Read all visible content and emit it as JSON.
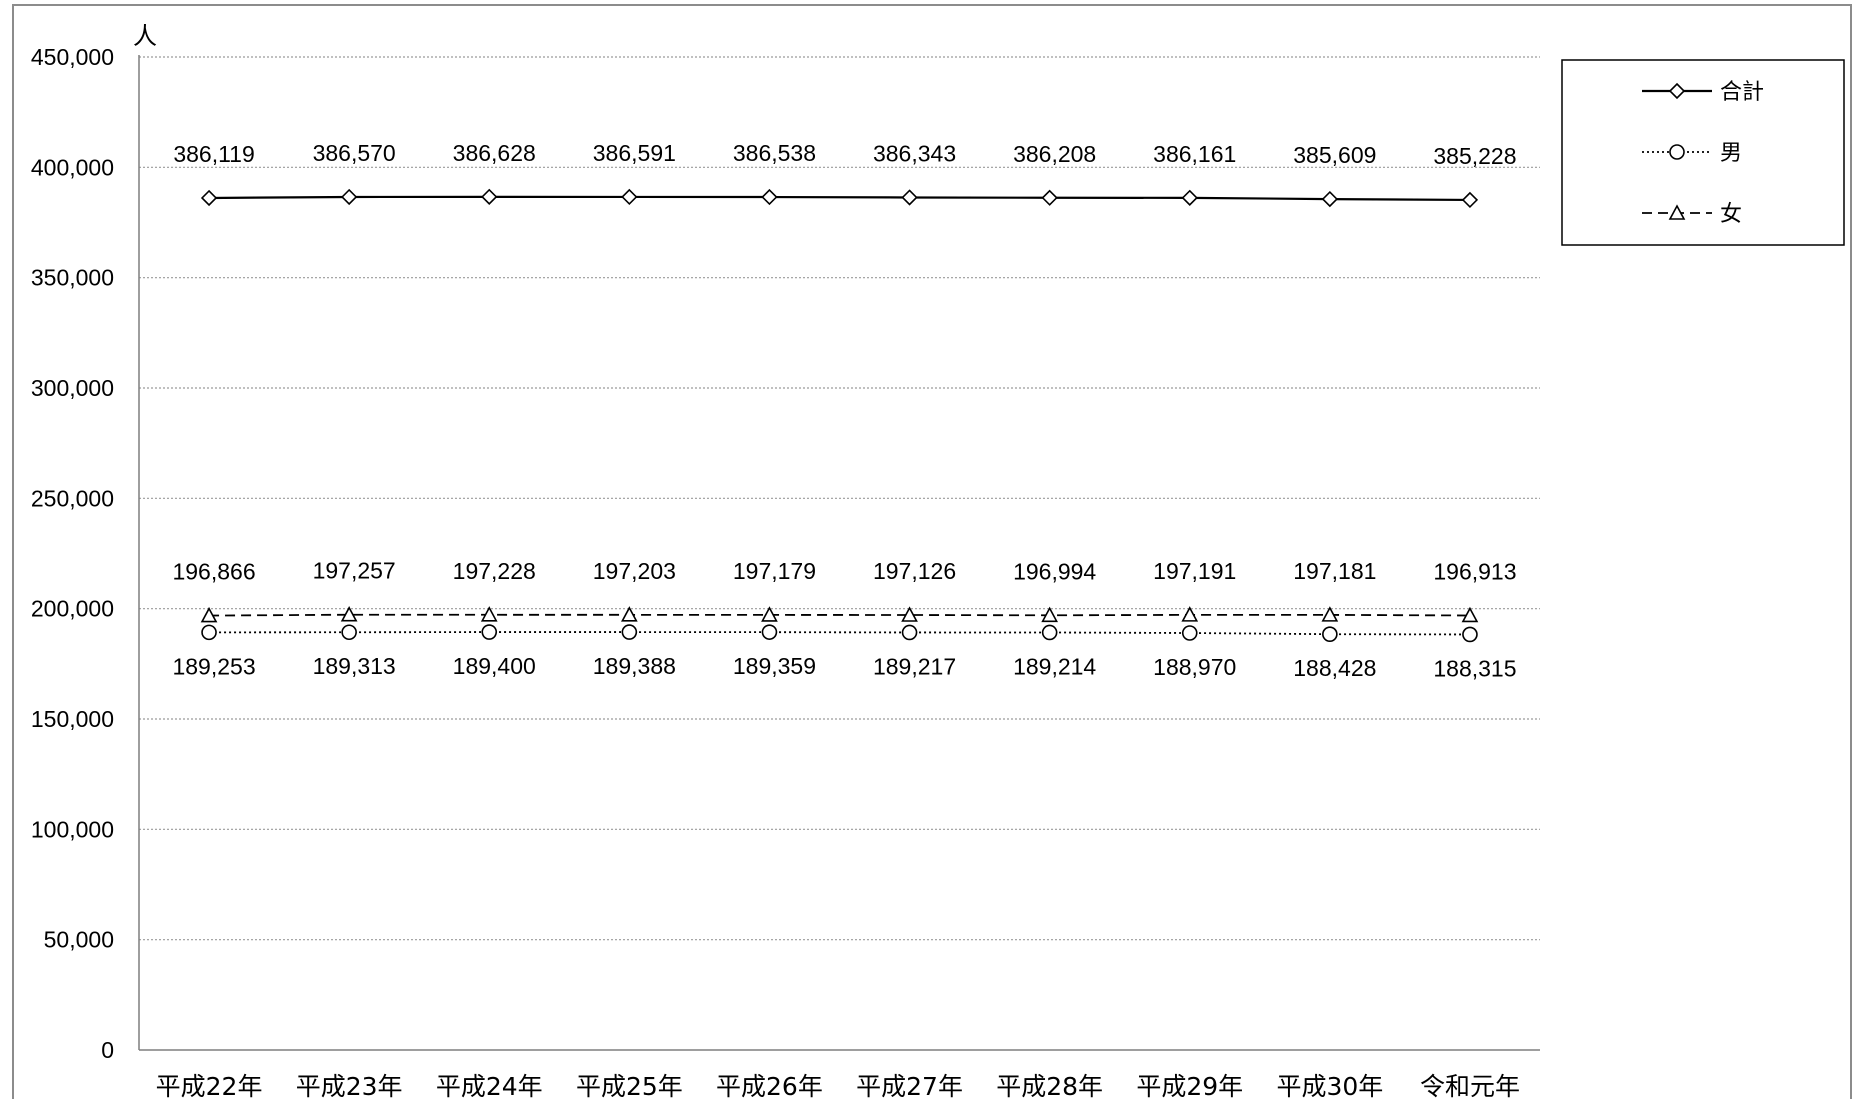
{
  "chart_data": {
    "type": "line",
    "unit_label": "人",
    "categories": [
      "平成22年",
      "平成23年",
      "平成24年",
      "平成25年",
      "平成26年",
      "平成27年",
      "平成28年",
      "平成29年",
      "平成30年",
      "令和元年"
    ],
    "ylim": [
      0,
      450000
    ],
    "yticks": [
      "0",
      "50,000",
      "100,000",
      "150,000",
      "200,000",
      "250,000",
      "300,000",
      "350,000",
      "400,000",
      "450,000"
    ],
    "grid": true,
    "legend_position": "top-right",
    "series": [
      {
        "name": "合計",
        "marker": "diamond",
        "line": "solid",
        "values": [
          386119,
          386570,
          386628,
          386591,
          386538,
          386343,
          386208,
          386161,
          385609,
          385228
        ],
        "labels": [
          "386,119",
          "386,570",
          "386,628",
          "386,591",
          "386,538",
          "386,343",
          "386,208",
          "386,161",
          "385,609",
          "385,228"
        ],
        "label_position": "above"
      },
      {
        "name": "男",
        "marker": "circle",
        "line": "dotted",
        "values": [
          189253,
          189313,
          189400,
          189388,
          189359,
          189217,
          189214,
          188970,
          188428,
          188315
        ],
        "labels": [
          "189,253",
          "189,313",
          "189,400",
          "189,388",
          "189,359",
          "189,217",
          "189,214",
          "188,970",
          "188,428",
          "188,315"
        ],
        "label_position": "below"
      },
      {
        "name": "女",
        "marker": "triangle",
        "line": "dashed",
        "values": [
          196866,
          197257,
          197228,
          197203,
          197179,
          197126,
          196994,
          197191,
          197181,
          196913
        ],
        "labels": [
          "196,866",
          "197,257",
          "197,228",
          "197,203",
          "197,179",
          "197,126",
          "196,994",
          "197,191",
          "197,181",
          "196,913"
        ],
        "label_position": "above"
      }
    ],
    "colors": {
      "line": "#000000",
      "grid": "#9a9a9a",
      "axis": "#7f7f7f",
      "frame": "#8c8c8c"
    }
  }
}
